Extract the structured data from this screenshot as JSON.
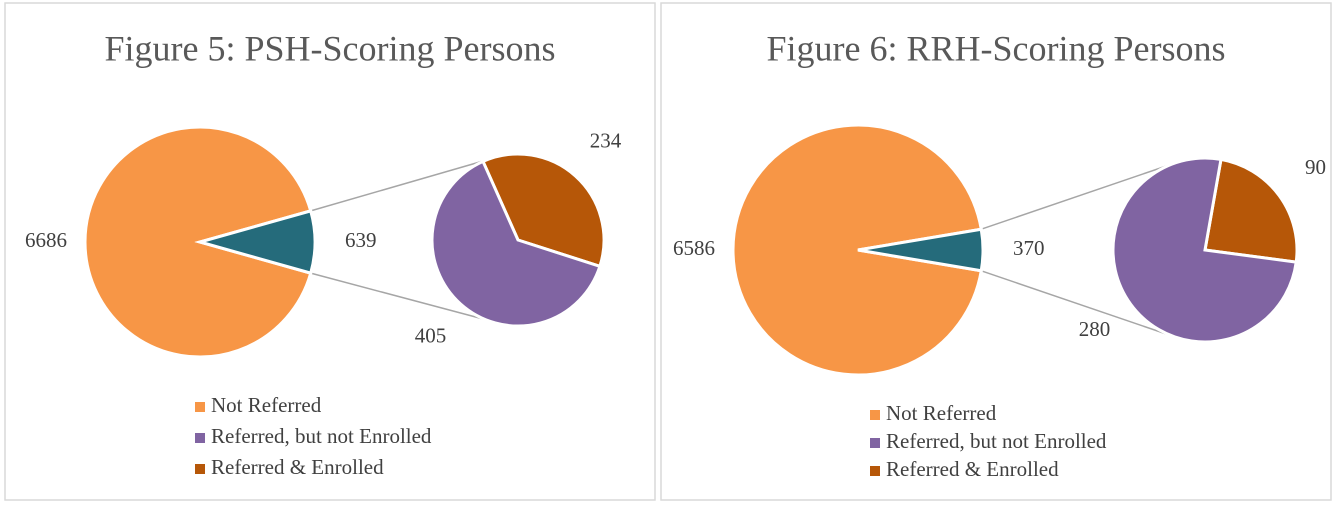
{
  "chart_data": [
    {
      "type": "pie",
      "title": "Figure 5: PSH-Scoring Persons",
      "categories": [
        "Not Referred",
        "Referred, but not Enrolled",
        "Referred & Enrolled"
      ],
      "values": [
        6686,
        405,
        234
      ],
      "colors": [
        "#f79646",
        "#8064a2",
        "#b65708"
      ],
      "other_value": 639,
      "other_color": "#256b7b"
    },
    {
      "type": "pie",
      "title": "Figure 6: RRH-Scoring Persons",
      "categories": [
        "Not Referred",
        "Referred, but not Enrolled",
        "Referred & Enrolled"
      ],
      "values": [
        6586,
        280,
        90
      ],
      "colors": [
        "#f79646",
        "#8064a2",
        "#b65708"
      ],
      "other_value": 370,
      "other_color": "#256b7b"
    }
  ]
}
